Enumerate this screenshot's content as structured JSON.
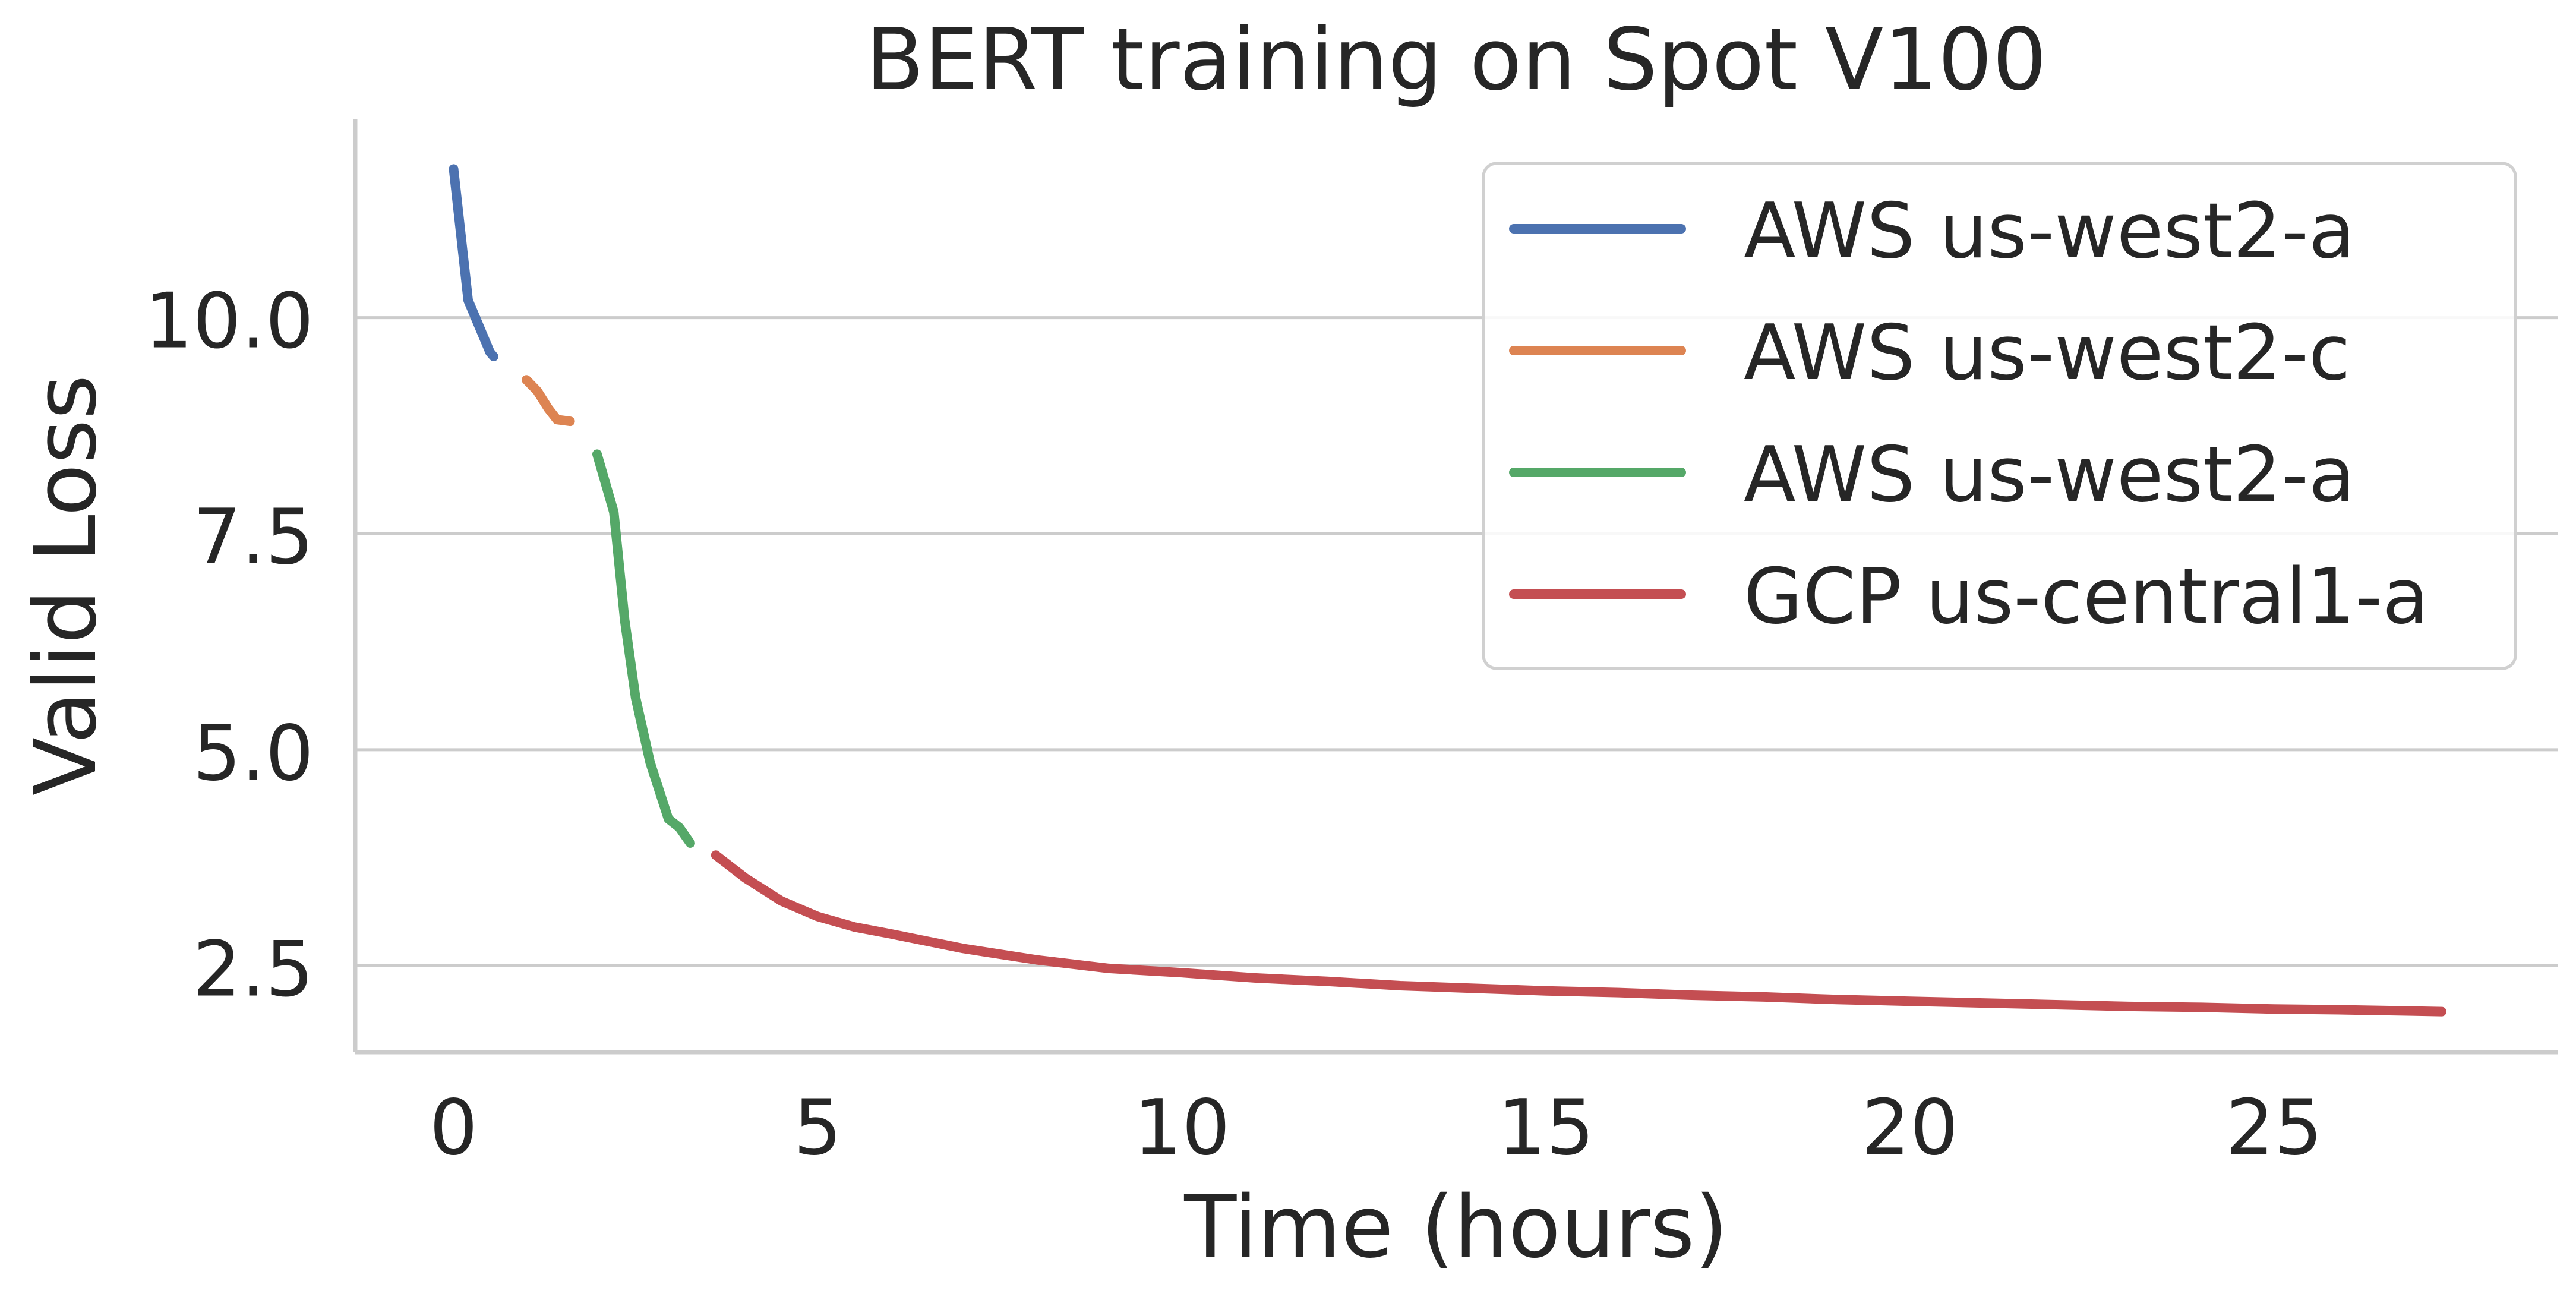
{
  "chart_data": {
    "type": "line",
    "title": "BERT training on Spot V100",
    "xlabel": "Time (hours)",
    "ylabel": "Valid Loss",
    "xlim": [
      -1.35,
      28.9
    ],
    "ylim": [
      1.5,
      12.3
    ],
    "xticks": [
      0,
      5,
      10,
      15,
      20,
      25
    ],
    "xtick_labels": [
      "0",
      "5",
      "10",
      "15",
      "20",
      "25"
    ],
    "yticks": [
      2.5,
      5.0,
      7.5,
      10.0
    ],
    "ytick_labels": [
      "2.5",
      "5.0",
      "7.5",
      "10.0"
    ],
    "grid": "horizontal",
    "legend_position": "top-right",
    "series": [
      {
        "name": "AWS us-west2-a",
        "color": "#4c72b0",
        "x": [
          0.0,
          0.2,
          0.35,
          0.5,
          0.55
        ],
        "y": [
          11.72,
          10.2,
          9.9,
          9.6,
          9.55
        ]
      },
      {
        "name": "AWS us-west2-c",
        "color": "#dd8452",
        "x": [
          1.0,
          1.15,
          1.3,
          1.42,
          1.6
        ],
        "y": [
          9.28,
          9.15,
          8.95,
          8.82,
          8.8
        ]
      },
      {
        "name": "AWS us-west2-a",
        "color": "#55a868",
        "x": [
          1.97,
          2.2,
          2.35,
          2.5,
          2.7,
          2.95,
          3.1,
          3.25
        ],
        "y": [
          8.42,
          7.75,
          6.5,
          5.6,
          4.85,
          4.2,
          4.1,
          3.92
        ]
      },
      {
        "name": "GCP us-central1-a",
        "color": "#c44e52",
        "x": [
          3.6,
          4.0,
          4.5,
          5.0,
          5.5,
          6.0,
          7.0,
          8.0,
          9.0,
          10.0,
          11.0,
          12.0,
          13.0,
          14.0,
          15.0,
          16.0,
          17.0,
          18.0,
          19.0,
          20.0,
          21.0,
          22.0,
          23.0,
          24.0,
          25.0,
          26.0,
          27.3
        ],
        "y": [
          3.78,
          3.52,
          3.25,
          3.07,
          2.95,
          2.87,
          2.7,
          2.57,
          2.47,
          2.42,
          2.36,
          2.32,
          2.27,
          2.24,
          2.21,
          2.19,
          2.16,
          2.14,
          2.11,
          2.09,
          2.07,
          2.05,
          2.03,
          2.02,
          2.0,
          1.99,
          1.97
        ]
      }
    ]
  }
}
